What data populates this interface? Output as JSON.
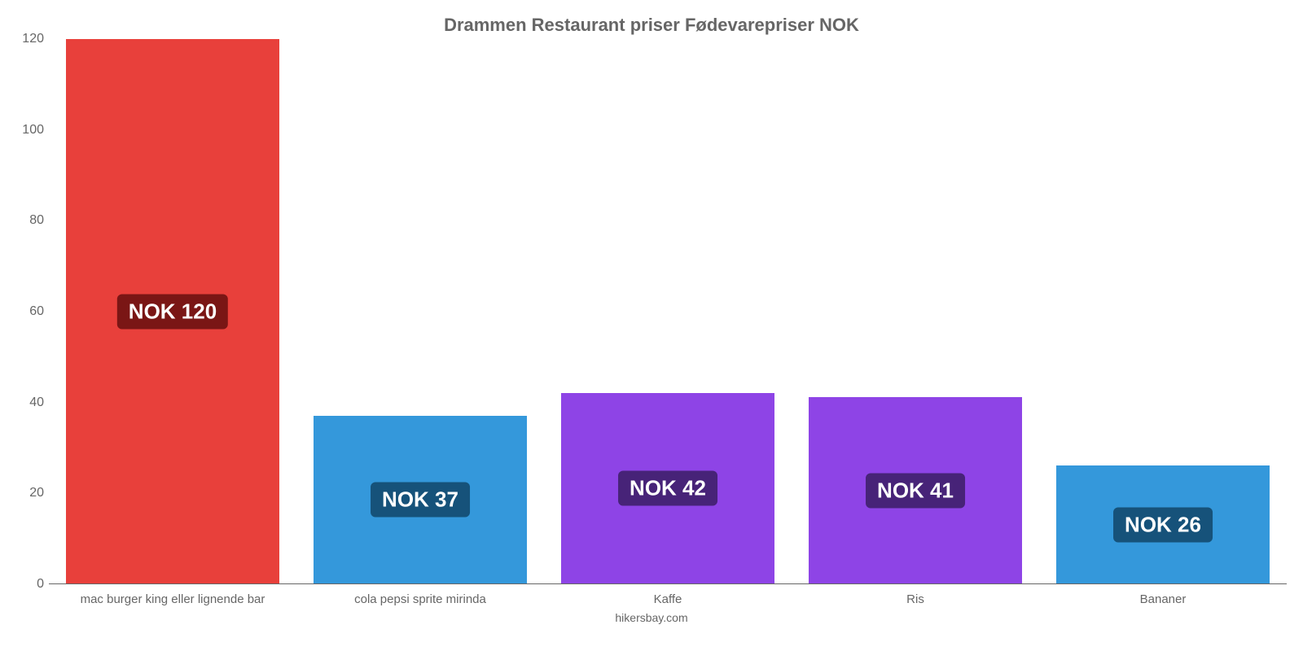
{
  "chart": {
    "type": "bar",
    "title": "Drammen Restaurant priser Fødevarepriser NOK",
    "title_fontsize": 22,
    "title_color": "#666666",
    "background_color": "#ffffff",
    "axis_color": "#666666",
    "label_color": "#666666",
    "label_fontsize": 15,
    "ylim": [
      0,
      120
    ],
    "ytick_step": 20,
    "yticks": [
      0,
      20,
      40,
      60,
      80,
      100,
      120
    ],
    "bar_width": 0.86,
    "value_prefix": "NOK ",
    "badge_fontsize": 26,
    "badge_text_color": "#ffffff",
    "categories": [
      "mac burger king eller lignende bar",
      "cola pepsi sprite mirinda",
      "Kaffe",
      "Ris",
      "Bananer"
    ],
    "values": [
      120,
      37,
      42,
      41,
      26
    ],
    "bar_colors": [
      "#e8403b",
      "#3498db",
      "#8e44e6",
      "#8e44e6",
      "#3498db"
    ],
    "badge_colors": [
      "#7a1615",
      "#16527a",
      "#472378",
      "#472378",
      "#16527a"
    ],
    "footer": "hikersbay.com"
  }
}
